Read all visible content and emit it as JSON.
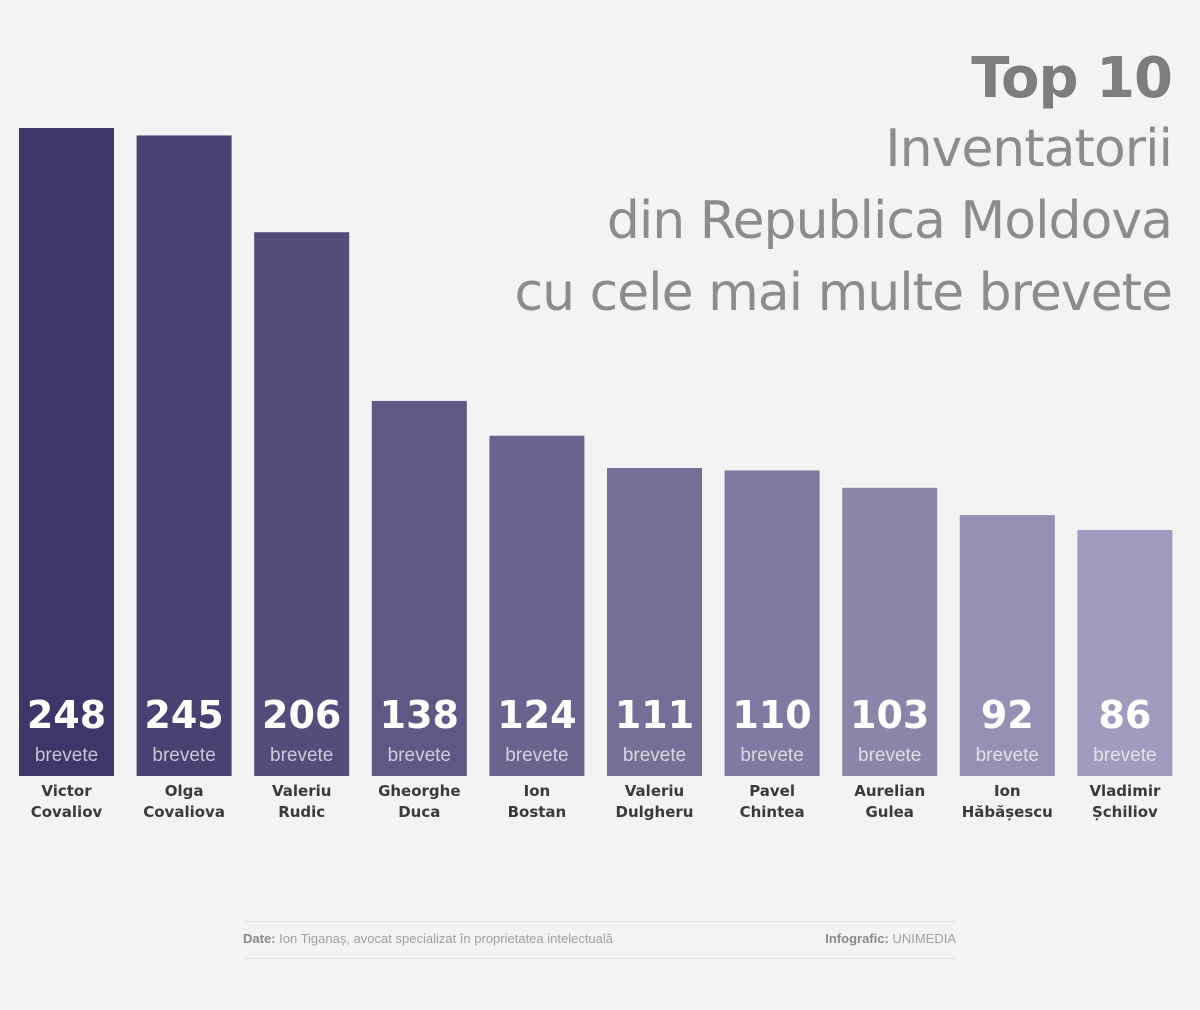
{
  "title": {
    "line1": "Top 10",
    "line2": "Inventatorii",
    "line3": "din Republica Moldova",
    "line4": "cu cele mai multe brevete"
  },
  "chart_data": {
    "type": "bar",
    "title": "Top 10 Inventatorii din Republica Moldova cu cele mai multe brevete",
    "categories": [
      [
        "Victor",
        "Covaliov"
      ],
      [
        "Olga",
        "Covaliova"
      ],
      [
        "Valeriu",
        "Rudic"
      ],
      [
        "Gheorghe",
        "Duca"
      ],
      [
        "Ion",
        "Bostan"
      ],
      [
        "Valeriu",
        "Dulgheru"
      ],
      [
        "Pavel",
        "Chintea"
      ],
      [
        "Aurelian",
        "Gulea"
      ],
      [
        "Ion",
        "Hăbășescu"
      ],
      [
        "Vladimir",
        "Șchiliov"
      ]
    ],
    "values": [
      248,
      245,
      206,
      138,
      124,
      111,
      110,
      103,
      92,
      86
    ],
    "unit_label": "brevete",
    "colors": {
      "darkest": "#3c3768",
      "lightest": "#a09cbd"
    }
  },
  "footer": {
    "source_label": "Date:",
    "source": "Ion Tiganaș, avocat specializat în proprietatea intelectuală",
    "credit_label": "Infografic:",
    "credit": "UNIMEDIA"
  }
}
